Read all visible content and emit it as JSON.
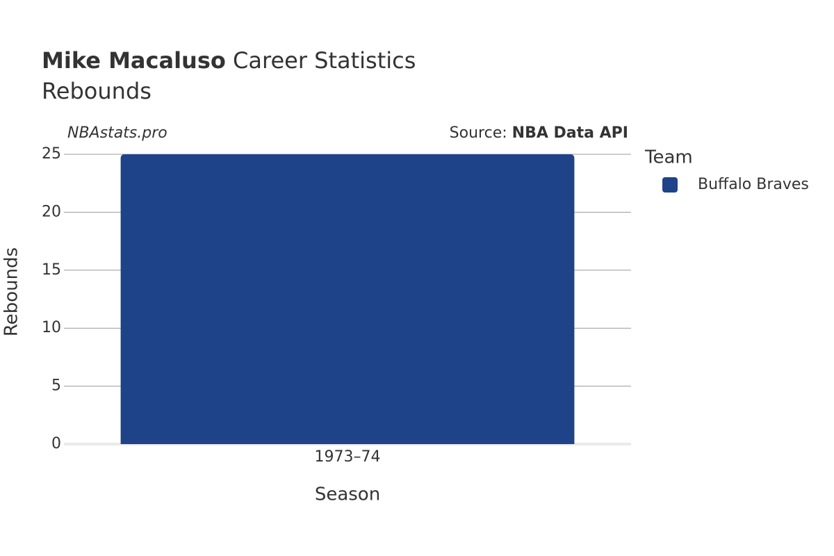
{
  "chart_data": {
    "type": "bar",
    "title": {
      "bold": "Mike Macaluso",
      "rest": "Career Statistics"
    },
    "subtitle": "Rebounds",
    "watermark": "NBAstats.pro",
    "source_label": "Source:",
    "source": "NBA Data API",
    "legend_title": "Team",
    "xlabel": "Season",
    "ylabel": "Rebounds",
    "categories": [
      "1973–74"
    ],
    "series": [
      {
        "name": "Buffalo Braves",
        "color": "#1f4388",
        "values": [
          25
        ]
      }
    ],
    "ylim": [
      0,
      25
    ],
    "yticks": [
      0,
      5,
      10,
      15,
      20,
      25
    ],
    "grid": true
  }
}
